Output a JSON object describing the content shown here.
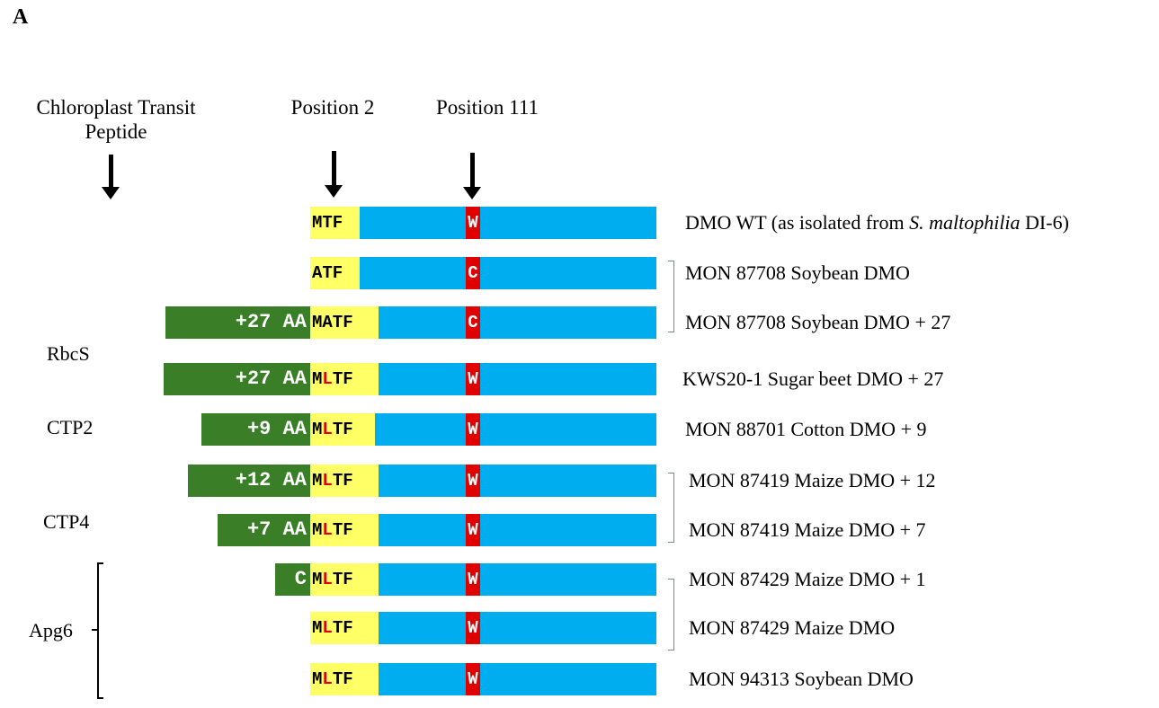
{
  "panel_label": "A",
  "headers": {
    "ctp": "Chloroplast Transit Peptide",
    "position2": "Position 2",
    "position111": "Position 111"
  },
  "groups": {
    "rbcs": "RbcS",
    "ctp2": "CTP2",
    "ctp4": "CTP4",
    "apg6": "Apg6"
  },
  "rows": [
    {
      "ctp": "",
      "nterm_pre": "",
      "nterm_red": "",
      "nterm_post": "MTF",
      "residue": "W",
      "label_pre": "DMO WT (as isolated from ",
      "label_italic": "S. maltophilia",
      "label_post": " DI-6)"
    },
    {
      "ctp": "",
      "nterm_pre": "",
      "nterm_red": "",
      "nterm_post": "ATF",
      "residue": "C",
      "label_pre": "MON 87708 Soybean DMO",
      "label_italic": "",
      "label_post": ""
    },
    {
      "ctp": "+27 AA",
      "nterm_pre": "",
      "nterm_red": "",
      "nterm_post": "MATF",
      "residue": "C",
      "label_pre": "MON 87708 Soybean DMO + 27",
      "label_italic": "",
      "label_post": ""
    },
    {
      "ctp": "+27 AA",
      "nterm_pre": "M",
      "nterm_red": "L",
      "nterm_post": "TF",
      "residue": "W",
      "label_pre": "KWS20-1 Sugar beet DMO + 27",
      "label_italic": "",
      "label_post": ""
    },
    {
      "ctp": "+9 AA",
      "nterm_pre": "M",
      "nterm_red": "L",
      "nterm_post": "TF",
      "residue": "W",
      "label_pre": "MON 88701 Cotton DMO + 9",
      "label_italic": "",
      "label_post": ""
    },
    {
      "ctp": "+12 AA",
      "nterm_pre": "M",
      "nterm_red": "L",
      "nterm_post": "TF",
      "residue": "W",
      "label_pre": "MON 87419 Maize DMO + 12",
      "label_italic": "",
      "label_post": ""
    },
    {
      "ctp": "+7 AA",
      "nterm_pre": "M",
      "nterm_red": "L",
      "nterm_post": "TF",
      "residue": "W",
      "label_pre": "MON 87419 Maize DMO + 7",
      "label_italic": "",
      "label_post": ""
    },
    {
      "ctp": "C",
      "nterm_pre": "M",
      "nterm_red": "L",
      "nterm_post": "TF",
      "residue": "W",
      "label_pre": "MON 87429 Maize DMO + 1",
      "label_italic": "",
      "label_post": ""
    },
    {
      "ctp": "",
      "nterm_pre": "M",
      "nterm_red": "L",
      "nterm_post": "TF",
      "residue": "W",
      "label_pre": "MON 87429 Maize DMO",
      "label_italic": "",
      "label_post": ""
    },
    {
      "ctp": "",
      "nterm_pre": "M",
      "nterm_red": "L",
      "nterm_post": "TF",
      "residue": "W",
      "label_pre": "MON 94313 Soybean DMO",
      "label_italic": "",
      "label_post": ""
    }
  ],
  "colors": {
    "ctp_segment": "#3a7f27",
    "nterm_segment": "#ffff66",
    "protein_body": "#00aeef",
    "residue_box": "#e00000",
    "substitution_text": "#e00000"
  }
}
